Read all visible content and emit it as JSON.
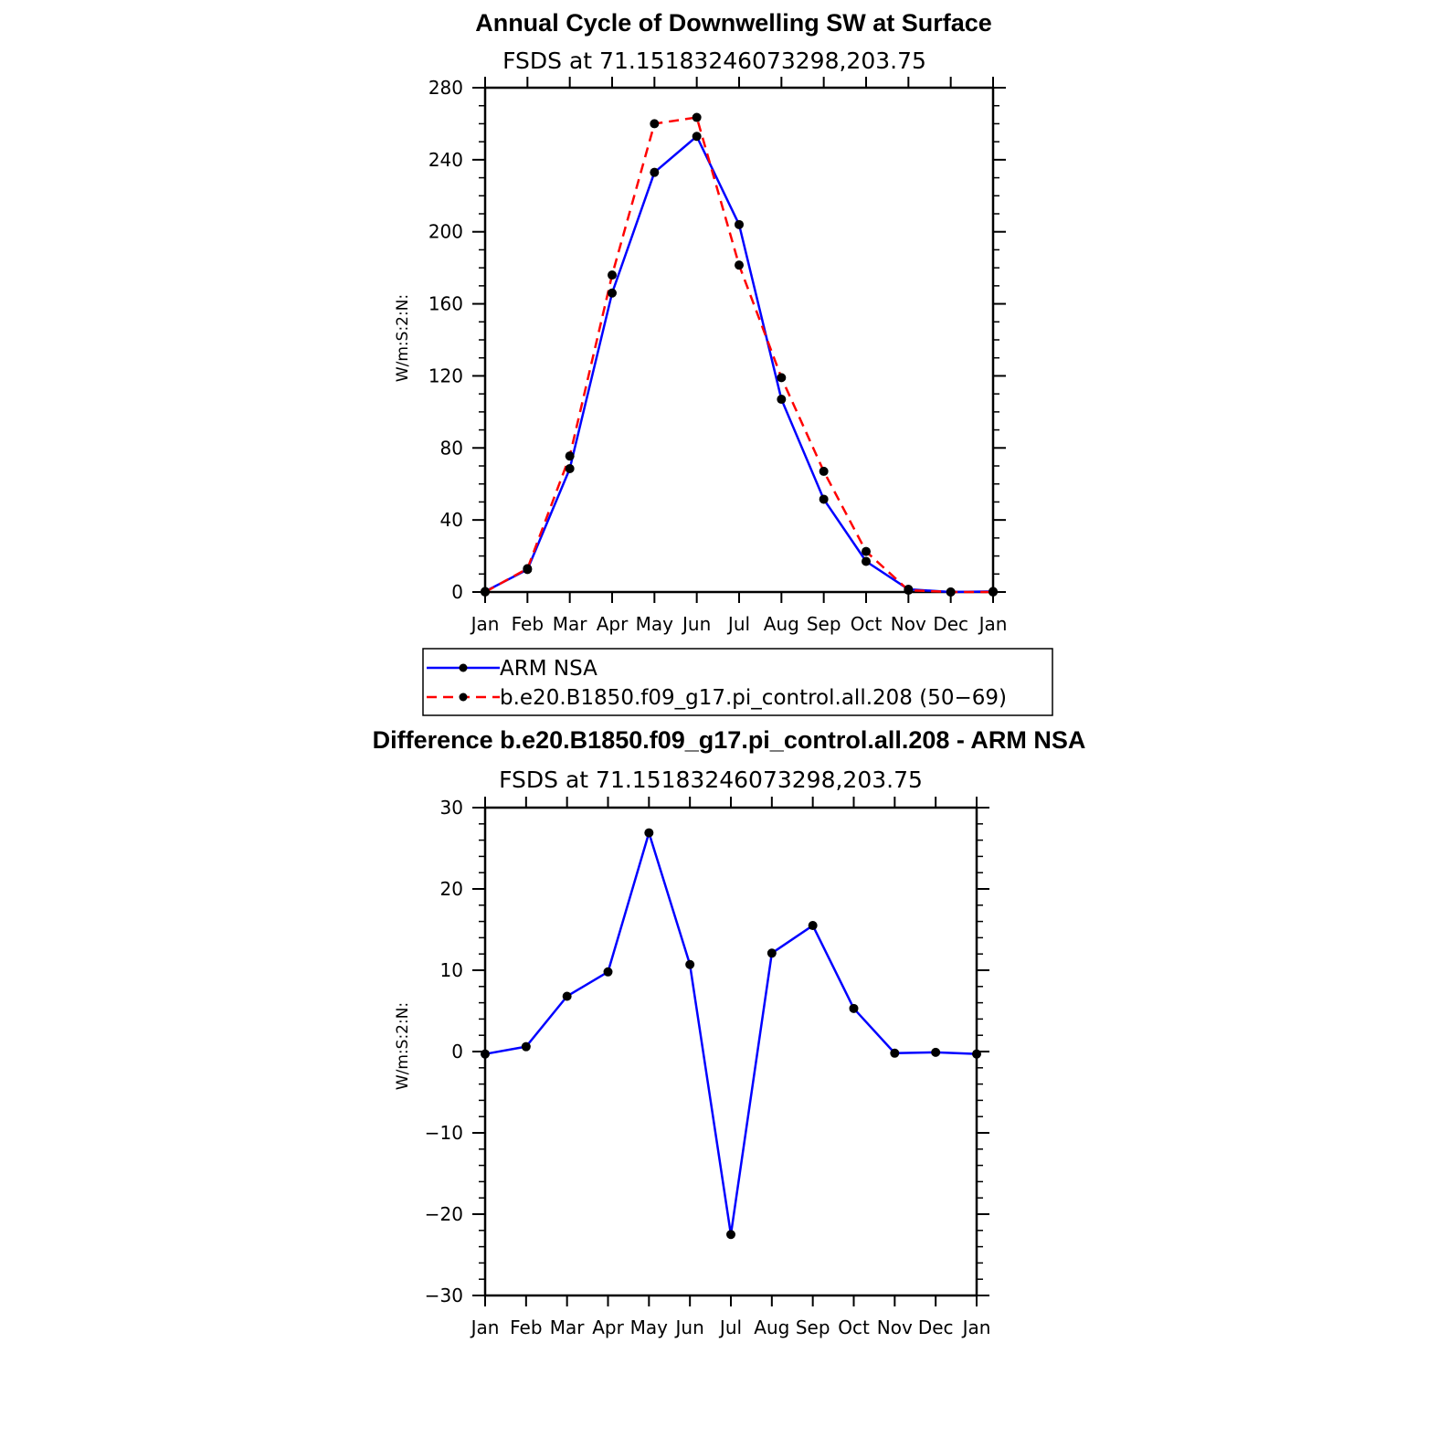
{
  "colors": {
    "obs": "#0000ff",
    "model": "#ff0000",
    "marker": "#000000",
    "axis": "#000000"
  },
  "chart_data": [
    {
      "type": "line",
      "title": "Annual Cycle of Downwelling SW at Surface",
      "subtitle": "FSDS at 71.15183246073298,203.75",
      "xlabel": "",
      "ylabel": "W/m:S:2:N:",
      "x": [
        "Jan",
        "Feb",
        "Mar",
        "Apr",
        "May",
        "Jun",
        "Jul",
        "Aug",
        "Sep",
        "Oct",
        "Nov",
        "Dec",
        "Jan"
      ],
      "ylim": [
        0,
        280
      ],
      "yticks": [
        0,
        40,
        80,
        120,
        160,
        200,
        240,
        280
      ],
      "ytick_labels": [
        "0",
        "40",
        "80",
        "120",
        "160",
        "200",
        "240",
        "280"
      ],
      "series": [
        {
          "name": "ARM NSA",
          "style": "solid",
          "color": "#0000ff",
          "values": [
            0.3,
            12.5,
            68.5,
            166,
            233,
            253,
            204,
            107,
            51.5,
            17,
            1.5,
            0,
            0.3
          ]
        },
        {
          "name": "b.e20.B1850.f09_g17.pi_control.all.208 (50-69)",
          "style": "dashed",
          "color": "#ff0000",
          "values": [
            0,
            13,
            75.5,
            176,
            260,
            263.5,
            181.5,
            119,
            67,
            22.5,
            1,
            0,
            0
          ]
        }
      ],
      "legend": "below"
    },
    {
      "type": "line",
      "title": "Difference b.e20.B1850.f09_g17.pi_control.all.208 - ARM NSA",
      "subtitle": "FSDS at 71.15183246073298,203.75",
      "xlabel": "",
      "ylabel": "W/m:S:2:N:",
      "x": [
        "Jan",
        "Feb",
        "Mar",
        "Apr",
        "May",
        "Jun",
        "Jul",
        "Aug",
        "Sep",
        "Oct",
        "Nov",
        "Dec",
        "Jan"
      ],
      "ylim": [
        -30,
        30
      ],
      "yticks": [
        -30,
        -20,
        -10,
        0,
        10,
        20,
        30
      ],
      "ytick_labels": [
        "−30",
        "−20",
        "−10",
        "0",
        "10",
        "20",
        "30"
      ],
      "series": [
        {
          "style": "solid",
          "color": "#0000ff",
          "values": [
            -0.3,
            0.6,
            6.8,
            9.8,
            26.9,
            10.7,
            -22.5,
            12.1,
            15.5,
            5.3,
            -0.2,
            -0.1,
            -0.3
          ]
        }
      ]
    }
  ],
  "legend_entries": [
    {
      "label": "ARM NSA"
    },
    {
      "label": "b.e20.B1850.f09_g17.pi_control.all.208 (50−69)"
    }
  ]
}
